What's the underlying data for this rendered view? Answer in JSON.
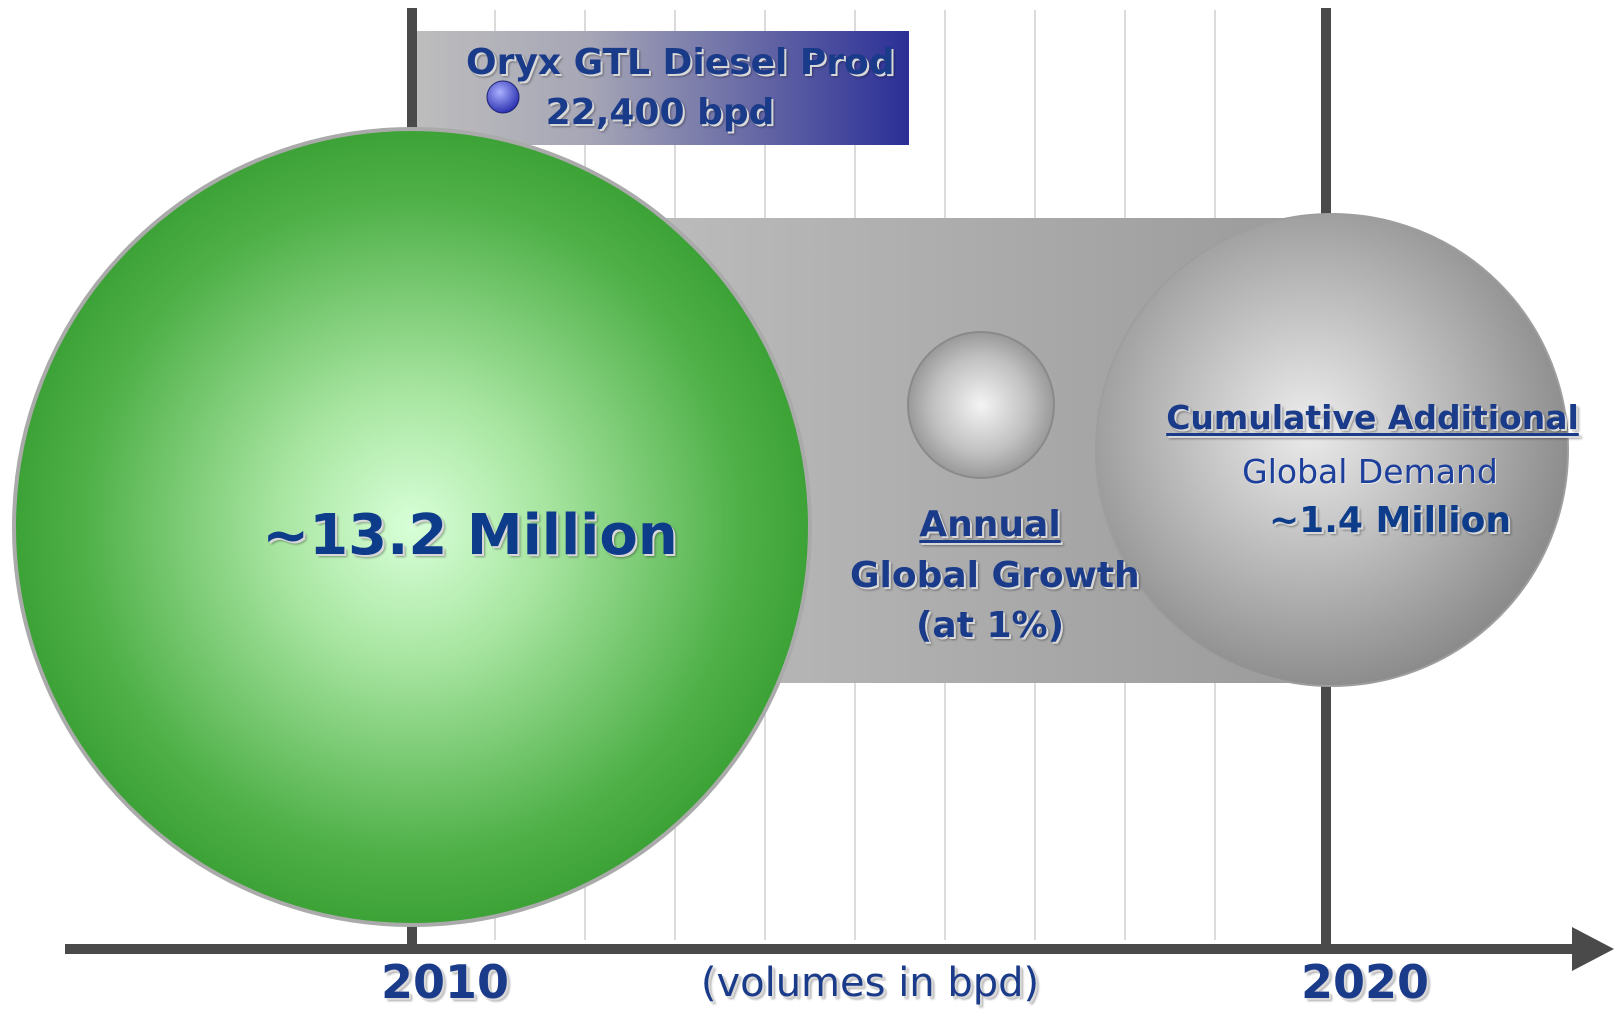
{
  "production_box": {
    "title": "Oryx GTL Diesel Prod",
    "value": "22,400 bpd"
  },
  "current_demand": {
    "value": "~13.2 Million",
    "color": "#3a9a34"
  },
  "annual_growth": {
    "title": "Annual",
    "line2": "Global Growth",
    "line3": "(at 1%)"
  },
  "cumulative_demand": {
    "title": "Cumulative Additional",
    "line2": "Global Demand",
    "value": "~1.4 Million"
  },
  "axis": {
    "start_year": "2010",
    "end_year": "2020",
    "units_note": "(volumes in bpd)"
  },
  "colors": {
    "text_blue": "#1a3a8a",
    "box_blue": "#2b2f96",
    "band_gray": "#a8a8a8",
    "axis": "#4a4a4a"
  }
}
